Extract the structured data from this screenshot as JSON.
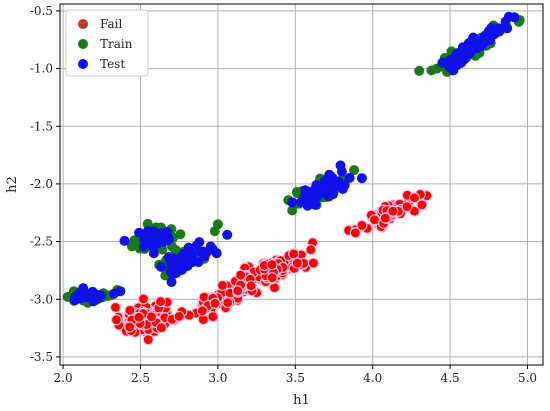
{
  "chart_data": {
    "type": "scatter",
    "xlabel": "h1",
    "ylabel": "h2",
    "xlim": [
      1.98,
      5.1
    ],
    "ylim": [
      -3.57,
      -0.44
    ],
    "x_ticks": [
      "2.0",
      "2.5",
      "3.0",
      "3.5",
      "4.0",
      "4.5",
      "5.0"
    ],
    "y_ticks": [
      "-0.5",
      "-1.0",
      "-1.5",
      "-2.0",
      "-2.5",
      "-3.0",
      "-3.5"
    ],
    "grid": true,
    "legend_position": "top-left",
    "colors": {
      "Fail_outline": "#f7c2e3",
      "Fail_legend": "#c0392b",
      "Train": "#1a7a1a",
      "Test": "#1010e8"
    },
    "series": [
      {
        "name": "Fail",
        "color": "#ff0000",
        "clusters": [
          {
            "cx": 2.52,
            "cy": -3.17,
            "sx": 0.075,
            "sy": 0.07,
            "rho": 0.2,
            "n": 90
          },
          {
            "cx": 3.2,
            "cy": -2.86,
            "sx": 0.2,
            "sy": 0.14,
            "rho": 0.92,
            "n": 170
          },
          {
            "cx": 4.12,
            "cy": -2.25,
            "sx": 0.09,
            "sy": 0.07,
            "rho": 0.75,
            "n": 55
          }
        ],
        "points": [
          [
            2.43,
            -3.24
          ],
          [
            2.55,
            -3.35
          ],
          [
            2.63,
            -3.02
          ],
          [
            2.9,
            -3.1
          ],
          [
            3.03,
            -2.88
          ],
          [
            3.35,
            -2.7
          ],
          [
            3.6,
            -2.57
          ],
          [
            3.93,
            -2.36
          ],
          [
            4.27,
            -2.12
          ]
        ]
      },
      {
        "name": "Train",
        "color": "#1a7a1a",
        "clusters": [
          {
            "cx": 2.2,
            "cy": -2.98,
            "sx": 0.07,
            "sy": 0.03,
            "rho": 0.3,
            "n": 22
          },
          {
            "cx": 2.59,
            "cy": -2.47,
            "sx": 0.09,
            "sy": 0.05,
            "rho": 0.2,
            "n": 38
          },
          {
            "cx": 2.8,
            "cy": -2.63,
            "sx": 0.09,
            "sy": 0.07,
            "rho": 0.7,
            "n": 40
          },
          {
            "cx": 3.66,
            "cy": -2.07,
            "sx": 0.08,
            "sy": 0.08,
            "rho": 0.75,
            "n": 38
          },
          {
            "cx": 4.65,
            "cy": -0.82,
            "sx": 0.1,
            "sy": 0.1,
            "rho": 0.9,
            "n": 55
          }
        ],
        "points": [
          [
            2.07,
            -2.93
          ],
          [
            2.35,
            -2.92
          ],
          [
            2.46,
            -2.49
          ],
          [
            2.63,
            -2.39
          ],
          [
            2.62,
            -2.7
          ],
          [
            2.98,
            -2.41
          ],
          [
            3.0,
            -2.35
          ],
          [
            3.48,
            -2.23
          ],
          [
            3.51,
            -2.07
          ],
          [
            3.88,
            -1.88
          ],
          [
            4.3,
            -1.02
          ],
          [
            4.48,
            -1.03
          ],
          [
            4.95,
            -0.58
          ]
        ]
      },
      {
        "name": "Test",
        "color": "#1010e8",
        "clusters": [
          {
            "cx": 2.17,
            "cy": -2.97,
            "sx": 0.06,
            "sy": 0.025,
            "rho": 0.3,
            "n": 24
          },
          {
            "cx": 2.6,
            "cy": -2.47,
            "sx": 0.07,
            "sy": 0.04,
            "rho": 0.2,
            "n": 38
          },
          {
            "cx": 2.8,
            "cy": -2.64,
            "sx": 0.09,
            "sy": 0.07,
            "rho": 0.75,
            "n": 48
          },
          {
            "cx": 3.68,
            "cy": -2.05,
            "sx": 0.08,
            "sy": 0.08,
            "rho": 0.8,
            "n": 48
          },
          {
            "cx": 4.66,
            "cy": -0.8,
            "sx": 0.09,
            "sy": 0.09,
            "rho": 0.92,
            "n": 70
          }
        ],
        "points": [
          [
            2.37,
            -2.93
          ],
          [
            2.65,
            -2.43
          ],
          [
            2.7,
            -2.85
          ],
          [
            3.48,
            -2.16
          ],
          [
            3.93,
            -1.95
          ],
          [
            4.45,
            -0.95
          ],
          [
            4.88,
            -0.55
          ]
        ]
      }
    ]
  }
}
